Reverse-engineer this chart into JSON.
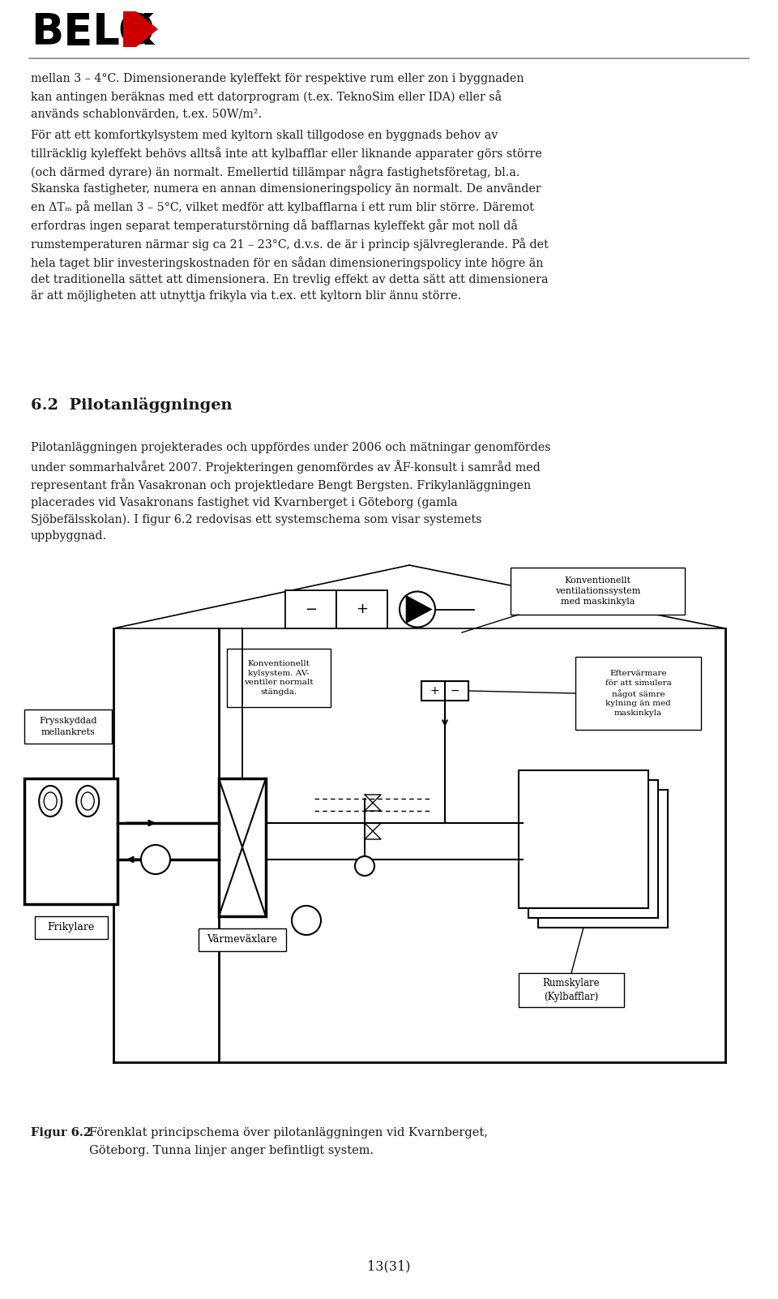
{
  "text1": "mellan 3 – 4°C. Dimensionerande kyleffekt för respektive rum eller zon i byggnaden\nkan antingen beräknas med ett datorprogram (t.ex. TeknoSim eller IDA) eller så\nanvänds schablonvärden, t.ex. 50W/m².",
  "text2": "För att ett komfortkylsystem med kyltorn skall tillgodose en byggnads behov av\ntillräcklig kyleffekt behövs alltså inte att kylbafflar eller liknande apparater görs större\n(och därmed dyrare) än normalt. Emellertid tillämpar några fastighetsföretag, bl.a.\nSkanska fastigheter, numera en annan dimensioneringspolicy än normalt. De använder\nen ΔTₘ på mellan 3 – 5°C, vilket medför att kylbafflarna i ett rum blir större. Däremot\nerfordras ingen separat temperaturstörning då bafflarnas kyleffekt går mot noll då\nrumstemperaturen närmar sig ca 21 – 23°C, d.v.s. de är i princip självreglerande. På det\nhela taget blir investeringskostnaden för en sådan dimensioneringspolicy inte högre än\ndet traditionella sättet att dimensionera. En trevlig effekt av detta sätt att dimensionera\när att möjligheten att utnyttja frikyla via t.ex. ett kyltorn blir ännu större.",
  "section_heading": "6.2  Pilotanläggningen",
  "text3": "Pilotanläggningen projekterades och uppfördes under 2006 och mätningar genomfördes\nunder sommarhalvåret 2007. Projekteringen genomfördes av ÅF-konsult i samråd med\nrepresentant från Vasakronan och projektledare Bengt Bergsten. Frikylanläggningen\nplacerades vid Vasakronans fastighet vid Kvarnberget i Göteborg (gamla\nSjöbefälsskolan). I figur 6.2 redovisas ett systemschema som visar systemets\nuppbyggnad.",
  "caption_bold": "Figur 6.2",
  "caption_text": "  Förenklat principschema över pilotanläggningen vid Kvarnberget,",
  "caption_text2": "           Göteborg. Tunna linjer anger befintligt system.",
  "page_number": "13(31)",
  "bg_color": "#ffffff",
  "text_color": "#1a1a1a"
}
